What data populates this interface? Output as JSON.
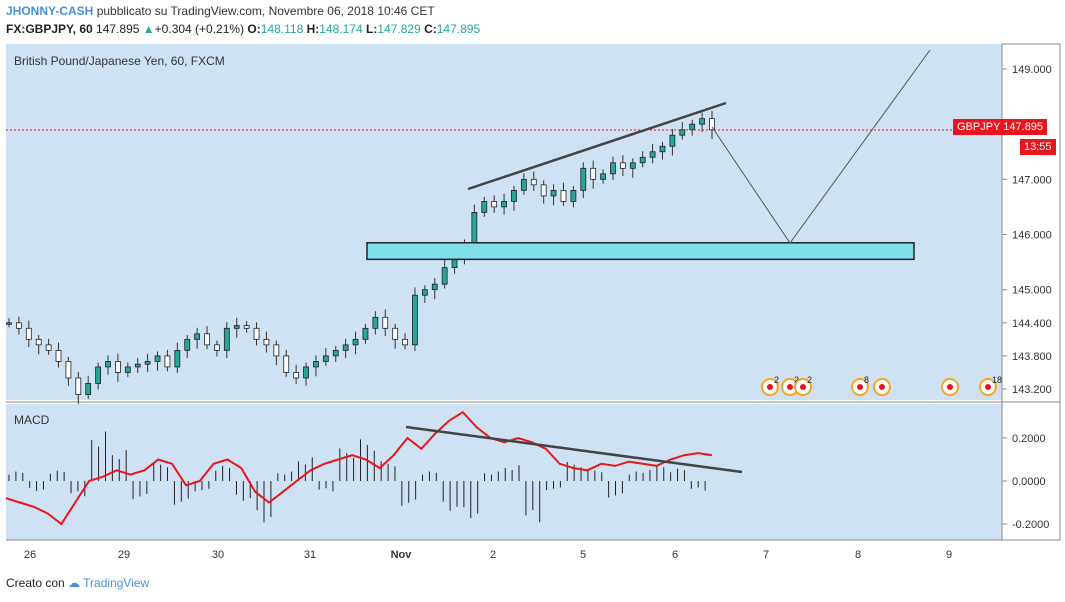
{
  "header": {
    "author": "JHONNY-CASH",
    "published": "pubblicato su TradingView.com, Novembre 06, 2018 10:46 CET",
    "symbol": "FX:GBPJPY, 60",
    "last": "147.895",
    "change_arrow": "▲",
    "change": "+0.304 (+0.21%)",
    "o_label": "O:",
    "o": "148.118",
    "h_label": "H:",
    "h": "148.174",
    "l_label": "L:",
    "l": "147.829",
    "c_label": "C:",
    "c": "147.895"
  },
  "price_panel": {
    "title": "British Pound/Japanese Yen, 60, FXCM"
  },
  "macd_panel": {
    "title": "MACD"
  },
  "price_label": {
    "tag": "GBPJPY",
    "value": "147.895",
    "countdown": "13:55"
  },
  "footer": {
    "created": "Creato con",
    "brand": "TradingView"
  },
  "colors": {
    "panel_bg": "#cfe2f3",
    "up": "#26a69a",
    "down": "#222222",
    "macd_line": "#e8161c",
    "zone_fill": "#80deea",
    "price_line": "#e8161c"
  },
  "chart_data": [
    {
      "type": "candlestick",
      "title": "British Pound/Japanese Yen, 60, FXCM",
      "y_ticks": [
        "149.000",
        "147.000",
        "146.000",
        "145.000",
        "144.400",
        "143.800",
        "143.200"
      ],
      "x_ticks": [
        "26",
        "29",
        "30",
        "31",
        "Nov",
        "2",
        "5",
        "6",
        "7",
        "8",
        "9"
      ],
      "ylim": [
        143.0,
        149.6
      ],
      "close_path": [
        144.4,
        144.3,
        144.1,
        144.0,
        143.9,
        143.7,
        143.4,
        143.1,
        143.3,
        143.6,
        143.7,
        143.5,
        143.6,
        143.65,
        143.7,
        143.8,
        143.6,
        143.9,
        144.1,
        144.2,
        144.0,
        143.9,
        144.3,
        144.35,
        144.3,
        144.1,
        144.0,
        143.8,
        143.5,
        143.4,
        143.6,
        143.7,
        143.8,
        143.9,
        144.0,
        144.1,
        144.3,
        144.5,
        144.3,
        144.1,
        144.0,
        144.9,
        145.0,
        145.1,
        145.4,
        145.6,
        145.8,
        146.4,
        146.6,
        146.5,
        146.6,
        146.8,
        147.0,
        146.9,
        146.7,
        146.8,
        146.6,
        146.8,
        147.2,
        147.0,
        147.1,
        147.3,
        147.2,
        147.3,
        147.4,
        147.5,
        147.6,
        147.8,
        147.9,
        148.0,
        148.1,
        147.9
      ],
      "annotations": [
        {
          "type": "trendline",
          "points": [
            [
              147.8,
              146.7
            ],
            [
              148.3,
              148.3
            ]
          ]
        },
        {
          "type": "zone",
          "range": [
            145.55,
            145.85
          ]
        },
        {
          "type": "projection",
          "points": [
            [
              147.9
            ],
            [
              145.8
            ],
            [
              149.4
            ]
          ]
        }
      ],
      "last_price": 147.895,
      "event_markers": [
        "2",
        "2",
        "2",
        "8",
        "18"
      ]
    },
    {
      "type": "macd",
      "title": "MACD",
      "y_ticks": [
        "0.2000",
        "0.0000",
        "-0.2000"
      ],
      "ylim": [
        -0.27,
        0.27
      ],
      "macd_line": [
        -0.08,
        -0.1,
        -0.12,
        -0.15,
        -0.2,
        -0.1,
        0.0,
        0.02,
        0.05,
        0.03,
        0.05,
        0.1,
        0.08,
        -0.02,
        0.0,
        0.08,
        0.1,
        0.06,
        -0.05,
        -0.1,
        -0.05,
        0.0,
        0.05,
        0.08,
        0.1,
        0.12,
        0.1,
        0.06,
        0.12,
        0.2,
        0.15,
        0.22,
        0.28,
        0.32,
        0.25,
        0.2,
        0.18,
        0.2,
        0.18,
        0.15,
        0.08,
        0.06,
        0.05,
        0.08,
        0.07,
        0.09,
        0.08,
        0.07,
        0.1,
        0.12,
        0.13,
        0.12
      ],
      "histogram": [
        0.05,
        -0.05,
        0.05,
        -0.08,
        0.25,
        0.15,
        -0.1,
        0.1,
        -0.12,
        -0.05,
        0.08,
        -0.1,
        -0.2,
        0.05,
        0.12,
        -0.05,
        0.18,
        0.22,
        0.1,
        -0.12,
        0.05,
        -0.15,
        -0.18,
        0.05,
        0.08,
        -0.2,
        -0.05,
        0.1,
        0.06,
        -0.08,
        0.05,
        0.08,
        0.06,
        -0.05
      ],
      "annotations": [
        {
          "type": "trendline",
          "points": [
            [
              0.25
            ],
            [
              0.05
            ]
          ]
        }
      ]
    }
  ]
}
